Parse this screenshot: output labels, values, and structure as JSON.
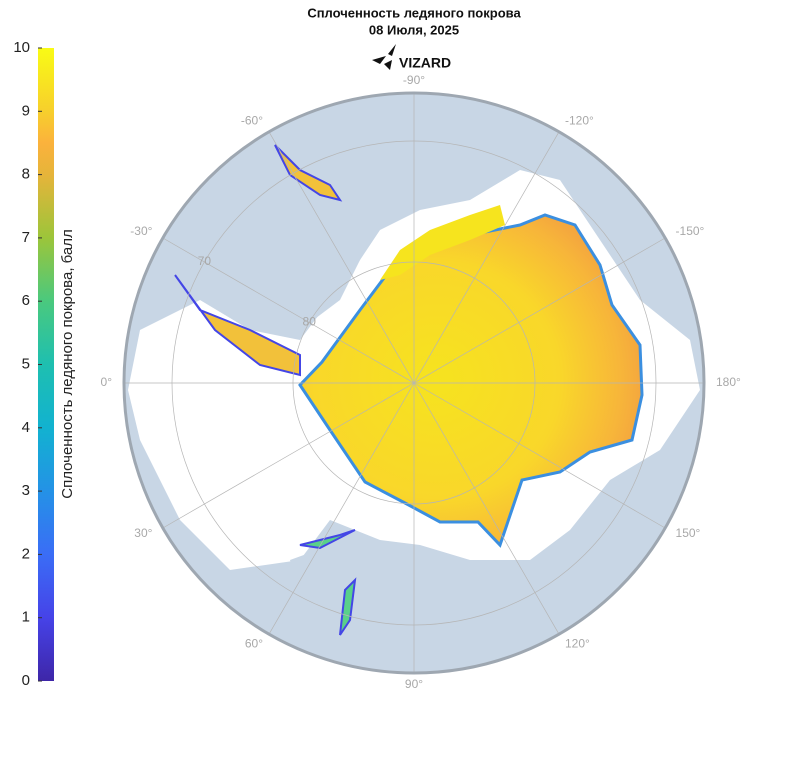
{
  "header": {
    "title": "Сплоченность ледяного покрова",
    "subtitle": "08 Июля, 2025",
    "logo": "VIZARD"
  },
  "colorbar": {
    "label": "Сплоченность ледяного покрова, балл",
    "lim": [
      0,
      10
    ],
    "ticks": [
      0,
      1,
      2,
      3,
      4,
      5,
      6,
      7,
      8,
      9,
      10
    ]
  },
  "graticule": {
    "longitude_labels": [
      {
        "value": -90,
        "label": "-90°"
      },
      {
        "value": -120,
        "label": "-120°"
      },
      {
        "value": -60,
        "label": "-60°"
      },
      {
        "value": -150,
        "label": "-150°"
      },
      {
        "value": -30,
        "label": "-30°"
      },
      {
        "value": 0,
        "label": "0°"
      },
      {
        "value": 180,
        "label": "180°"
      },
      {
        "value": 30,
        "label": "30°"
      },
      {
        "value": 150,
        "label": "150°"
      },
      {
        "value": 60,
        "label": "60°"
      },
      {
        "value": 120,
        "label": "120°"
      },
      {
        "value": 90,
        "label": "90°"
      }
    ],
    "latitude_labels": [
      70,
      80
    ]
  }
}
